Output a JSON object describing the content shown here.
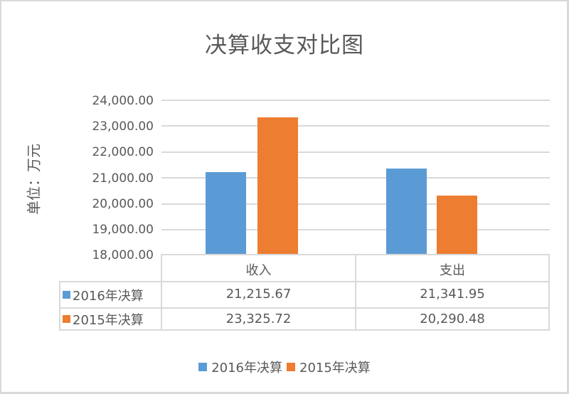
{
  "chart_data": {
    "type": "bar",
    "title": "决算收支对比图",
    "xlabel": "",
    "ylabel": "单位：万元",
    "ylim": [
      18000,
      24000
    ],
    "yticks": [
      "24,000.00",
      "23,000.00",
      "22,000.00",
      "21,000.00",
      "20,000.00",
      "19,000.00",
      "18,000.00"
    ],
    "categories": [
      "收入",
      "支出"
    ],
    "series": [
      {
        "name": "2016年决算",
        "color": "#5b9bd5",
        "values": [
          21215.67,
          21341.95
        ],
        "labels": [
          "21,215.67",
          "21,341.95"
        ]
      },
      {
        "name": "2015年决算",
        "color": "#ed7d31",
        "values": [
          23325.72,
          20290.48
        ],
        "labels": [
          "23,325.72",
          "20,290.48"
        ]
      }
    ],
    "grid": true,
    "legend_position": "bottom",
    "data_table": true
  },
  "colors": {
    "series_2016": "#5b9bd5",
    "series_2015": "#ed7d31",
    "grid": "#d9d9d9",
    "text": "#595959"
  }
}
